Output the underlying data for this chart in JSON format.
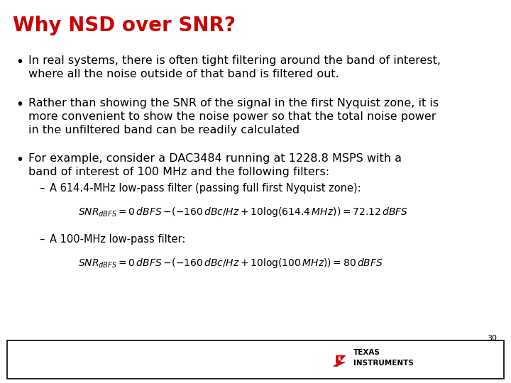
{
  "title": "Why NSD over SNR?",
  "title_color": "#cc0000",
  "title_fontsize": 20,
  "background_color": "#ffffff",
  "bullet1_line1": "In real systems, there is often tight filtering around the band of interest,",
  "bullet1_line2": "where all the noise outside of that band is filtered out.",
  "bullet2_line1": "Rather than showing the SNR of the signal in the first Nyquist zone, it is",
  "bullet2_line2": "more convenient to show the noise power so that the total noise power",
  "bullet2_line3": "in the unfiltered band can be readily calculated",
  "bullet3_line1": "For example, consider a DAC3484 running at 1228.8 MSPS with a",
  "bullet3_line2": "band of interest of 100 MHz and the following filters:",
  "sub1": "A 614.4-MHz low-pass filter (passing full first Nyquist zone):",
  "sub2": "A 100-MHz low-pass filter:",
  "text_color": "#000000",
  "bullet_fontsize": 11.5,
  "sub_fontsize": 10.5,
  "eq_fontsize": 10.0,
  "page_number": "30",
  "footer_border_color": "#000000",
  "ti_red": "#cc0000"
}
